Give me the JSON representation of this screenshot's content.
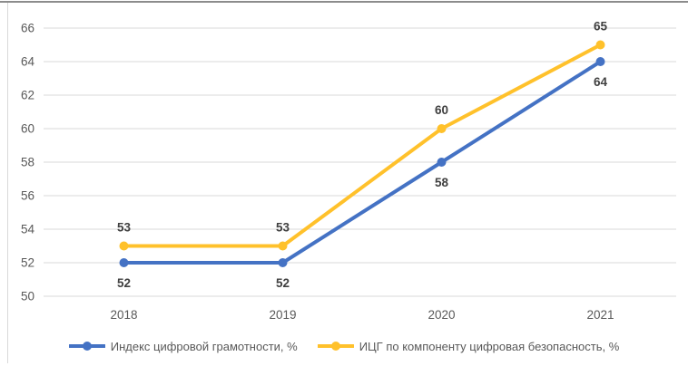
{
  "chart_data": {
    "type": "line",
    "title": "",
    "xlabel": "",
    "ylabel": "",
    "categories": [
      "2018",
      "2019",
      "2020",
      "2021"
    ],
    "series": [
      {
        "id": "digital-literacy-index",
        "name": "Индекс цифровой грамотности, %",
        "values": [
          52,
          52,
          58,
          64
        ],
        "color": "#4472C4",
        "label_position": "below"
      },
      {
        "id": "icg-digital-security-component",
        "name": "ИЦГ по компоненту цифровая безопасность, %",
        "values": [
          53,
          53,
          60,
          65
        ],
        "color": "#FFC12B",
        "label_position": "above"
      }
    ],
    "ylim": [
      50,
      66
    ],
    "yticks": [
      50,
      52,
      54,
      56,
      58,
      60,
      62,
      64,
      66
    ],
    "grid": true,
    "gridline_color": "#d9d9d9",
    "axis_text_color": "#595959",
    "data_label_color": "#404040",
    "frame_top_border_color": "#8c8c8c",
    "frame_left_border_color": "#d9d9d9",
    "legend_position": "bottom",
    "markers": true
  }
}
